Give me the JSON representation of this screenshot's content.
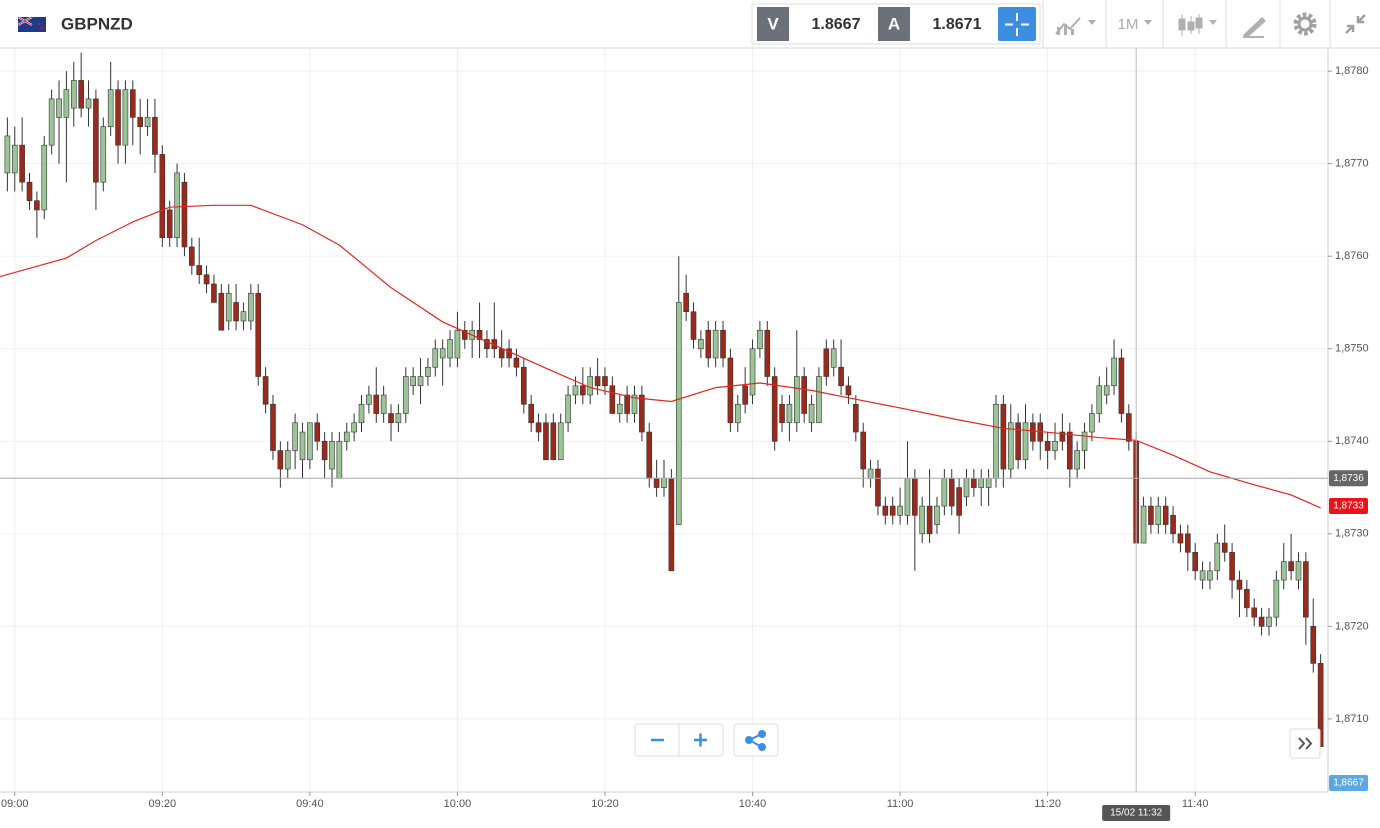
{
  "header": {
    "symbol": "GBPNZD",
    "bid_label": "V",
    "bid": 1.8667,
    "ask_label": "A",
    "ask": 1.8671,
    "timeframe": "1M"
  },
  "chart_data": {
    "type": "candlestick",
    "up_color": "#9cc597",
    "down_color": "#9a2a1b",
    "wick_color": "#333333",
    "xlim": [
      "08:58",
      "11:58"
    ],
    "ylim": [
      1.87021,
      1.87825
    ],
    "xticks": [
      "09:00",
      "09:20",
      "09:40",
      "10:00",
      "10:20",
      "10:40",
      "11:00",
      "11:20",
      "11:40"
    ],
    "yticks": [
      {
        "value": 1.871,
        "label": "1,8710"
      },
      {
        "value": 1.872,
        "label": "1,8720"
      },
      {
        "value": 1.873,
        "label": "1,8730"
      },
      {
        "value": 1.874,
        "label": "1,8740"
      },
      {
        "value": 1.875,
        "label": "1,8750"
      },
      {
        "value": 1.876,
        "label": "1,8760"
      },
      {
        "value": 1.877,
        "label": "1,8770"
      },
      {
        "value": 1.878,
        "label": "1,8780"
      }
    ],
    "grid": true,
    "x": [
      "08:59",
      "09:00",
      "09:01",
      "09:02",
      "09:03",
      "09:04",
      "09:05",
      "09:06",
      "09:07",
      "09:08",
      "09:09",
      "09:10",
      "09:11",
      "09:12",
      "09:13",
      "09:14",
      "09:15",
      "09:16",
      "09:17",
      "09:18",
      "09:19",
      "09:20",
      "09:21",
      "09:22",
      "09:23",
      "09:24",
      "09:25",
      "09:26",
      "09:27",
      "09:28",
      "09:29",
      "09:30",
      "09:31",
      "09:32",
      "09:33",
      "09:34",
      "09:35",
      "09:36",
      "09:37",
      "09:38",
      "09:39",
      "09:40",
      "09:41",
      "09:42",
      "09:43",
      "09:44",
      "09:45",
      "09:46",
      "09:47",
      "09:48",
      "09:49",
      "09:50",
      "09:51",
      "09:52",
      "09:53",
      "09:54",
      "09:55",
      "09:56",
      "09:57",
      "09:58",
      "09:59",
      "10:00",
      "10:01",
      "10:02",
      "10:03",
      "10:04",
      "10:05",
      "10:06",
      "10:07",
      "10:08",
      "10:09",
      "10:10",
      "10:11",
      "10:12",
      "10:13",
      "10:14",
      "10:15",
      "10:16",
      "10:17",
      "10:18",
      "10:19",
      "10:20",
      "10:21",
      "10:22",
      "10:23",
      "10:24",
      "10:25",
      "10:26",
      "10:27",
      "10:28",
      "10:29",
      "10:30",
      "10:31",
      "10:32",
      "10:33",
      "10:34",
      "10:35",
      "10:36",
      "10:37",
      "10:38",
      "10:39",
      "10:40",
      "10:41",
      "10:42",
      "10:43",
      "10:44",
      "10:45",
      "10:46",
      "10:47",
      "10:48",
      "10:49",
      "10:50",
      "10:51",
      "10:52",
      "10:53",
      "10:54",
      "10:55",
      "10:56",
      "10:57",
      "10:58",
      "10:59",
      "11:00",
      "11:01",
      "11:02",
      "11:03",
      "11:04",
      "11:05",
      "11:06",
      "11:07",
      "11:08",
      "11:09",
      "11:10",
      "11:11",
      "11:12",
      "11:13",
      "11:14",
      "11:15",
      "11:16",
      "11:17",
      "11:18",
      "11:19",
      "11:20",
      "11:21",
      "11:22",
      "11:23",
      "11:24",
      "11:25",
      "11:26",
      "11:27",
      "11:28",
      "11:29",
      "11:30",
      "11:31",
      "11:32",
      "11:33",
      "11:34",
      "11:35",
      "11:36",
      "11:37",
      "11:38",
      "11:39",
      "11:40",
      "11:41",
      "11:42",
      "11:43",
      "11:44",
      "11:45",
      "11:46",
      "11:47",
      "11:48",
      "11:49",
      "11:50",
      "11:51",
      "11:52",
      "11:53",
      "11:54",
      "11:55",
      "11:56",
      "11:57"
    ],
    "candles": [
      [
        1.8769,
        1.8775,
        1.8767,
        1.8773
      ],
      [
        1.8769,
        1.8774,
        1.8767,
        1.8772
      ],
      [
        1.8772,
        1.8775,
        1.8767,
        1.8768
      ],
      [
        1.8768,
        1.8769,
        1.8765,
        1.8766
      ],
      [
        1.8766,
        1.8767,
        1.8762,
        1.8765
      ],
      [
        1.8765,
        1.8773,
        1.8764,
        1.8772
      ],
      [
        1.8772,
        1.8778,
        1.8771,
        1.8777
      ],
      [
        1.8775,
        1.8779,
        1.877,
        1.8777
      ],
      [
        1.8775,
        1.878,
        1.8768,
        1.8778
      ],
      [
        1.8776,
        1.8781,
        1.8774,
        1.8779
      ],
      [
        1.8779,
        1.8782,
        1.8775,
        1.8776
      ],
      [
        1.8776,
        1.8779,
        1.8774,
        1.8777
      ],
      [
        1.8777,
        1.8778,
        1.8765,
        1.8768
      ],
      [
        1.8768,
        1.8775,
        1.8767,
        1.8774
      ],
      [
        1.8774,
        1.8781,
        1.8773,
        1.8778
      ],
      [
        1.8778,
        1.8779,
        1.877,
        1.8772
      ],
      [
        1.8772,
        1.8779,
        1.877,
        1.8778
      ],
      [
        1.8778,
        1.8779,
        1.8772,
        1.8775
      ],
      [
        1.8775,
        1.8777,
        1.8771,
        1.8774
      ],
      [
        1.8774,
        1.8777,
        1.8773,
        1.8775
      ],
      [
        1.8775,
        1.8777,
        1.8769,
        1.8771
      ],
      [
        1.8771,
        1.8772,
        1.8761,
        1.8762
      ],
      [
        1.8765,
        1.8766,
        1.8761,
        1.8762
      ],
      [
        1.8762,
        1.877,
        1.8761,
        1.8769
      ],
      [
        1.8768,
        1.8769,
        1.876,
        1.8761
      ],
      [
        1.8761,
        1.8762,
        1.8758,
        1.8759
      ],
      [
        1.8759,
        1.8762,
        1.8757,
        1.8758
      ],
      [
        1.8758,
        1.8759,
        1.8756,
        1.8757
      ],
      [
        1.8757,
        1.8758,
        1.8755,
        1.8755
      ],
      [
        1.8756,
        1.8757,
        1.8752,
        1.8752
      ],
      [
        1.8753,
        1.8757,
        1.8752,
        1.8756
      ],
      [
        1.8755,
        1.8757,
        1.8752,
        1.8753
      ],
      [
        1.8753,
        1.8755,
        1.8752,
        1.8754
      ],
      [
        1.8753,
        1.8757,
        1.8752,
        1.8756
      ],
      [
        1.8756,
        1.8757,
        1.8746,
        1.8747
      ],
      [
        1.8747,
        1.8748,
        1.8743,
        1.8744
      ],
      [
        1.8744,
        1.8745,
        1.8738,
        1.8739
      ],
      [
        1.8739,
        1.874,
        1.8735,
        1.8737
      ],
      [
        1.8737,
        1.874,
        1.8736,
        1.8739
      ],
      [
        1.8739,
        1.8743,
        1.8737,
        1.8742
      ],
      [
        1.8738,
        1.8742,
        1.8736,
        1.8741
      ],
      [
        1.8738,
        1.8742,
        1.8737,
        1.8742
      ],
      [
        1.8742,
        1.8743,
        1.8739,
        1.874
      ],
      [
        1.874,
        1.8741,
        1.8736,
        1.8738
      ],
      [
        1.8737,
        1.8741,
        1.8735,
        1.874
      ],
      [
        1.8736,
        1.8741,
        1.8736,
        1.874
      ],
      [
        1.874,
        1.8742,
        1.8739,
        1.8741
      ],
      [
        1.8741,
        1.8743,
        1.874,
        1.8742
      ],
      [
        1.8742,
        1.8745,
        1.8741,
        1.8744
      ],
      [
        1.8744,
        1.8746,
        1.8743,
        1.8745
      ],
      [
        1.8745,
        1.8748,
        1.8742,
        1.8743
      ],
      [
        1.8743,
        1.8746,
        1.8742,
        1.8745
      ],
      [
        1.8743,
        1.8744,
        1.874,
        1.8742
      ],
      [
        1.8742,
        1.8744,
        1.8741,
        1.8743
      ],
      [
        1.8743,
        1.8748,
        1.8742,
        1.8747
      ],
      [
        1.8746,
        1.8748,
        1.8745,
        1.8747
      ],
      [
        1.8746,
        1.8749,
        1.8744,
        1.8747
      ],
      [
        1.8747,
        1.8749,
        1.8746,
        1.8748
      ],
      [
        1.8748,
        1.8751,
        1.8747,
        1.875
      ],
      [
        1.8749,
        1.8751,
        1.8746,
        1.875
      ],
      [
        1.8749,
        1.8752,
        1.8748,
        1.8751
      ],
      [
        1.8749,
        1.8754,
        1.8748,
        1.8752
      ],
      [
        1.8752,
        1.8753,
        1.875,
        1.8751
      ],
      [
        1.8751,
        1.8753,
        1.8749,
        1.8752
      ],
      [
        1.8752,
        1.8755,
        1.8749,
        1.8751
      ],
      [
        1.8751,
        1.8752,
        1.8749,
        1.875
      ],
      [
        1.8751,
        1.8755,
        1.8749,
        1.875
      ],
      [
        1.875,
        1.8752,
        1.8748,
        1.8749
      ],
      [
        1.875,
        1.8751,
        1.8748,
        1.8749
      ],
      [
        1.8749,
        1.875,
        1.8747,
        1.8748
      ],
      [
        1.8748,
        1.8749,
        1.8743,
        1.8744
      ],
      [
        1.8744,
        1.8745,
        1.8741,
        1.8742
      ],
      [
        1.8742,
        1.8743,
        1.874,
        1.8741
      ],
      [
        1.8742,
        1.8743,
        1.8738,
        1.8738
      ],
      [
        1.8742,
        1.8743,
        1.8738,
        1.8738
      ],
      [
        1.8738,
        1.8743,
        1.8738,
        1.8742
      ],
      [
        1.8742,
        1.8746,
        1.8741,
        1.8745
      ],
      [
        1.8745,
        1.8747,
        1.8744,
        1.8746
      ],
      [
        1.8746,
        1.8748,
        1.8744,
        1.8745
      ],
      [
        1.8745,
        1.8748,
        1.8744,
        1.8747
      ],
      [
        1.8747,
        1.8749,
        1.8745,
        1.8746
      ],
      [
        1.8747,
        1.8748,
        1.8745,
        1.8746
      ],
      [
        1.8746,
        1.8747,
        1.8743,
        1.8743
      ],
      [
        1.8743,
        1.8745,
        1.8742,
        1.8744
      ],
      [
        1.8745,
        1.8746,
        1.8742,
        1.8743
      ],
      [
        1.8743,
        1.8746,
        1.8742,
        1.8745
      ],
      [
        1.8745,
        1.8746,
        1.874,
        1.8741
      ],
      [
        1.8741,
        1.8742,
        1.8735,
        1.8736
      ],
      [
        1.8736,
        1.8738,
        1.8734,
        1.8735
      ],
      [
        1.8735,
        1.8738,
        1.8734,
        1.8736
      ],
      [
        1.8736,
        1.8737,
        1.8726,
        1.8726
      ],
      [
        1.8731,
        1.876,
        1.8731,
        1.8755
      ],
      [
        1.8756,
        1.8758,
        1.8753,
        1.8754
      ],
      [
        1.8754,
        1.8755,
        1.875,
        1.8751
      ],
      [
        1.875,
        1.8752,
        1.8749,
        1.8751
      ],
      [
        1.8752,
        1.8753,
        1.8748,
        1.8749
      ],
      [
        1.8749,
        1.8753,
        1.8748,
        1.8752
      ],
      [
        1.8752,
        1.8753,
        1.8748,
        1.8749
      ],
      [
        1.8749,
        1.875,
        1.8741,
        1.8742
      ],
      [
        1.8742,
        1.8745,
        1.8741,
        1.8744
      ],
      [
        1.8746,
        1.8748,
        1.8743,
        1.8744
      ],
      [
        1.8745,
        1.8751,
        1.8744,
        1.875
      ],
      [
        1.875,
        1.8753,
        1.8749,
        1.8752
      ],
      [
        1.8752,
        1.8753,
        1.8746,
        1.8747
      ],
      [
        1.8747,
        1.8748,
        1.8739,
        1.874
      ],
      [
        1.8744,
        1.8745,
        1.8741,
        1.8742
      ],
      [
        1.8742,
        1.8745,
        1.874,
        1.8744
      ],
      [
        1.8742,
        1.8752,
        1.8741,
        1.8747
      ],
      [
        1.8747,
        1.8748,
        1.8742,
        1.8743
      ],
      [
        1.8742,
        1.8745,
        1.8741,
        1.8744
      ],
      [
        1.8742,
        1.8748,
        1.8742,
        1.8747
      ],
      [
        1.875,
        1.8751,
        1.8746,
        1.8747
      ],
      [
        1.8748,
        1.8751,
        1.8747,
        1.875
      ],
      [
        1.8748,
        1.8751,
        1.8745,
        1.8746
      ],
      [
        1.8746,
        1.8747,
        1.8744,
        1.8745
      ],
      [
        1.8744,
        1.8745,
        1.874,
        1.8741
      ],
      [
        1.8741,
        1.8742,
        1.8735,
        1.8737
      ],
      [
        1.8736,
        1.8738,
        1.8735,
        1.8737
      ],
      [
        1.8737,
        1.8738,
        1.8732,
        1.8733
      ],
      [
        1.8733,
        1.8734,
        1.8731,
        1.8732
      ],
      [
        1.8733,
        1.8734,
        1.8731,
        1.8732
      ],
      [
        1.8732,
        1.8735,
        1.8731,
        1.8733
      ],
      [
        1.8732,
        1.874,
        1.8731,
        1.8736
      ],
      [
        1.8736,
        1.8737,
        1.8726,
        1.8732
      ],
      [
        1.873,
        1.8734,
        1.8729,
        1.8733
      ],
      [
        1.8733,
        1.8737,
        1.8729,
        1.873
      ],
      [
        1.8731,
        1.8734,
        1.873,
        1.8733
      ],
      [
        1.8733,
        1.8737,
        1.8732,
        1.8736
      ],
      [
        1.8736,
        1.8737,
        1.8732,
        1.8733
      ],
      [
        1.8735,
        1.8736,
        1.873,
        1.8732
      ],
      [
        1.8734,
        1.8737,
        1.8733,
        1.8736
      ],
      [
        1.8736,
        1.8737,
        1.8734,
        1.8735
      ],
      [
        1.8735,
        1.8737,
        1.8733,
        1.8736
      ],
      [
        1.8735,
        1.8737,
        1.8733,
        1.8736
      ],
      [
        1.8736,
        1.8745,
        1.8735,
        1.8744
      ],
      [
        1.8744,
        1.8745,
        1.8735,
        1.8737
      ],
      [
        1.8737,
        1.8744,
        1.8736,
        1.8742
      ],
      [
        1.8742,
        1.8743,
        1.8737,
        1.8738
      ],
      [
        1.8738,
        1.8744,
        1.8737,
        1.8742
      ],
      [
        1.8742,
        1.8743,
        1.8739,
        1.874
      ],
      [
        1.8742,
        1.8743,
        1.8738,
        1.874
      ],
      [
        1.874,
        1.8741,
        1.8737,
        1.8739
      ],
      [
        1.8739,
        1.8742,
        1.8738,
        1.874
      ],
      [
        1.8741,
        1.8743,
        1.8739,
        1.874
      ],
      [
        1.8741,
        1.8742,
        1.8735,
        1.8737
      ],
      [
        1.8737,
        1.874,
        1.8736,
        1.8739
      ],
      [
        1.8739,
        1.8742,
        1.8737,
        1.8741
      ],
      [
        1.8741,
        1.8744,
        1.874,
        1.8743
      ],
      [
        1.8743,
        1.8747,
        1.8742,
        1.8746
      ],
      [
        1.8745,
        1.8748,
        1.8744,
        1.8746
      ],
      [
        1.8746,
        1.8751,
        1.8745,
        1.8749
      ],
      [
        1.8749,
        1.875,
        1.8742,
        1.8743
      ],
      [
        1.8743,
        1.8744,
        1.8739,
        1.874
      ],
      [
        1.874,
        1.8741,
        1.8729,
        1.8729
      ],
      [
        1.8729,
        1.8734,
        1.8729,
        1.8733
      ],
      [
        1.8733,
        1.8734,
        1.873,
        1.8731
      ],
      [
        1.8731,
        1.8734,
        1.873,
        1.8733
      ],
      [
        1.8733,
        1.8734,
        1.873,
        1.8731
      ],
      [
        1.8732,
        1.8733,
        1.8729,
        1.873
      ],
      [
        1.873,
        1.8731,
        1.8728,
        1.8729
      ],
      [
        1.873,
        1.8731,
        1.8726,
        1.8728
      ],
      [
        1.8728,
        1.8729,
        1.8725,
        1.8726
      ],
      [
        1.8725,
        1.8727,
        1.8724,
        1.8726
      ],
      [
        1.8725,
        1.8727,
        1.8724,
        1.8726
      ],
      [
        1.8726,
        1.873,
        1.8725,
        1.8729
      ],
      [
        1.8729,
        1.8731,
        1.8727,
        1.8728
      ],
      [
        1.8728,
        1.8729,
        1.8723,
        1.8725
      ],
      [
        1.8725,
        1.8726,
        1.8721,
        1.8724
      ],
      [
        1.8724,
        1.8725,
        1.8721,
        1.8722
      ],
      [
        1.8722,
        1.8723,
        1.872,
        1.8721
      ],
      [
        1.8721,
        1.8722,
        1.8719,
        1.872
      ],
      [
        1.872,
        1.8722,
        1.8719,
        1.8721
      ],
      [
        1.8721,
        1.8726,
        1.872,
        1.8725
      ],
      [
        1.8725,
        1.8729,
        1.8724,
        1.8727
      ],
      [
        1.8727,
        1.873,
        1.8725,
        1.8726
      ],
      [
        1.8725,
        1.8728,
        1.8724,
        1.8727
      ],
      [
        1.8727,
        1.8728,
        1.8718,
        1.8721
      ],
      [
        1.872,
        1.8723,
        1.8715,
        1.8716
      ],
      [
        1.8716,
        1.8717,
        1.8707,
        1.8707
      ]
    ],
    "ma": {
      "color": "#e3261f",
      "x": [
        "08:58",
        "09:07",
        "09:11",
        "09:16",
        "09:21",
        "09:27",
        "09:32",
        "09:39",
        "09:44",
        "09:51",
        "09:58",
        "10:05",
        "10:12",
        "10:18",
        "10:24",
        "10:29",
        "10:35",
        "10:41",
        "10:48",
        "10:53",
        "11:00",
        "11:08",
        "11:14",
        "11:21",
        "11:27",
        "11:32",
        "11:37",
        "11:42",
        "11:48",
        "11:53",
        "11:57"
      ],
      "values": [
        1.87578,
        1.87598,
        1.87617,
        1.87637,
        1.87653,
        1.87655,
        1.87655,
        1.87634,
        1.87612,
        1.87566,
        1.87529,
        1.87504,
        1.87479,
        1.87458,
        1.87447,
        1.87443,
        1.87458,
        1.87463,
        1.87455,
        1.87447,
        1.87436,
        1.87423,
        1.87414,
        1.87409,
        1.87404,
        1.87401,
        1.87385,
        1.87367,
        1.87353,
        1.87342,
        1.87328
      ],
      "last_label": {
        "value": 1.8733,
        "label": "1,8733"
      }
    },
    "crosshair": {
      "y": {
        "value": 1.8736,
        "label": "1,8736"
      },
      "x": {
        "value": "11:32",
        "label": "15/02 11:32"
      }
    },
    "bid_marker": {
      "value": 1.8667,
      "label": "1,8667"
    }
  }
}
